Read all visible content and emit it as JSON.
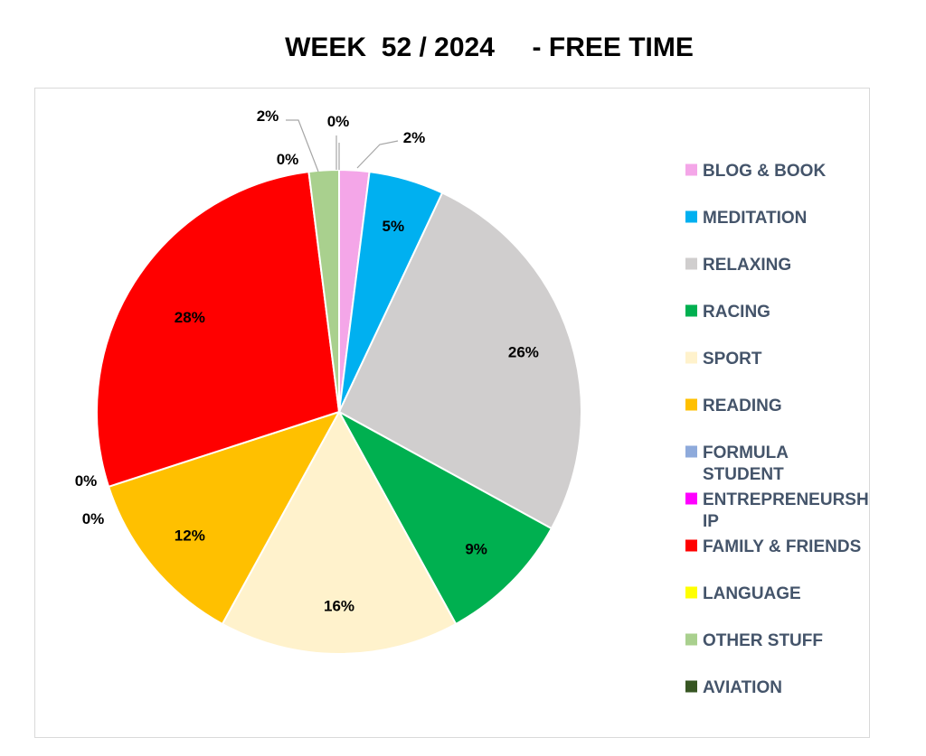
{
  "chart_data": {
    "type": "pie",
    "title": "WEEK  52 / 2024     - FREE TIME",
    "legend_position": "right",
    "slices": [
      {
        "name": "BLOG & BOOK",
        "value": 2,
        "label": "2%",
        "color": "#f4a6e8"
      },
      {
        "name": "MEDITATION",
        "value": 5,
        "label": "5%",
        "color": "#00b0f0"
      },
      {
        "name": "RELAXING",
        "value": 26,
        "label": "26%",
        "color": "#d0cece"
      },
      {
        "name": "RACING",
        "value": 9,
        "label": "9%",
        "color": "#00b050"
      },
      {
        "name": "SPORT",
        "value": 16,
        "label": "16%",
        "color": "#fff2cc"
      },
      {
        "name": "READING",
        "value": 12,
        "label": "12%",
        "color": "#ffc000"
      },
      {
        "name": "FORMULA STUDENT",
        "legend_lines": [
          "FORMULA",
          "STUDENT"
        ],
        "value": 0,
        "label": "0%",
        "color": "#8eaadb"
      },
      {
        "name": "ENTREPRENEURSHIP",
        "legend_lines": [
          "ENTREPRENEURSH",
          "IP"
        ],
        "value": 0,
        "label": "0%",
        "color": "#ff00ff"
      },
      {
        "name": "FAMILY & FRIENDS",
        "value": 28,
        "label": "28%",
        "color": "#ff0000"
      },
      {
        "name": "LANGUAGE",
        "value": 0,
        "label": "0%",
        "color": "#ffff00"
      },
      {
        "name": "OTHER STUFF",
        "value": 2,
        "label": "2%",
        "color": "#a9d08e"
      },
      {
        "name": "AVIATION",
        "value": 0,
        "label": "0%",
        "color": "#375623"
      }
    ]
  }
}
